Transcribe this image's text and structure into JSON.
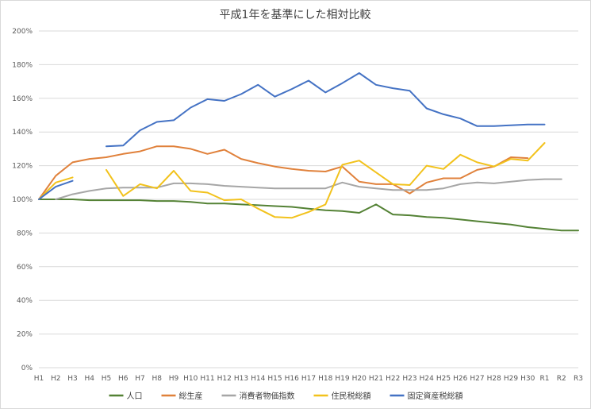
{
  "chart_data": {
    "type": "line",
    "title": "平成1年を基準にした相対比較",
    "xlabel": "",
    "ylabel": "",
    "ylim": [
      0,
      200
    ],
    "y_ticks": [
      "0%",
      "20%",
      "40%",
      "60%",
      "80%",
      "100%",
      "120%",
      "140%",
      "160%",
      "180%",
      "200%"
    ],
    "y_tick_values": [
      0,
      20,
      40,
      60,
      80,
      100,
      120,
      140,
      160,
      180,
      200
    ],
    "grid": true,
    "legend_position": "bottom",
    "categories": [
      "H1",
      "H2",
      "H3",
      "H4",
      "H5",
      "H6",
      "H7",
      "H8",
      "H9",
      "H10",
      "H11",
      "H12",
      "H13",
      "H14",
      "H15",
      "H16",
      "H17",
      "H18",
      "H19",
      "H20",
      "H21",
      "H22",
      "H23",
      "H24",
      "H25",
      "H26",
      "H27",
      "H28",
      "H29",
      "H30",
      "R1",
      "R2",
      "R3"
    ],
    "series": [
      {
        "name": "人口",
        "color": "#548235",
        "values": [
          100,
          100,
          100,
          99.5,
          99.5,
          99.5,
          99.5,
          99,
          99,
          98.5,
          97.5,
          97.5,
          97,
          96.5,
          96,
          95.5,
          94.5,
          93.5,
          93,
          92,
          97,
          91,
          90.5,
          89.5,
          89,
          88,
          87,
          86,
          85,
          83.5,
          82.5,
          81.5,
          81.5
        ]
      },
      {
        "name": "総生産",
        "color": "#e0813b",
        "values": [
          100,
          114,
          122,
          124,
          125,
          127,
          128.5,
          131.5,
          131.5,
          130,
          127,
          129.5,
          124,
          121.5,
          119.5,
          118,
          117,
          116.5,
          119.5,
          110.5,
          109,
          109,
          103.5,
          110,
          112.5,
          112.5,
          117.5,
          119.5,
          125,
          124.5,
          null,
          null,
          null
        ]
      },
      {
        "name": "消費者物価指数",
        "color": "#a6a6a6",
        "values": [
          null,
          100,
          103,
          105,
          106.5,
          107,
          107,
          107,
          109.5,
          109.5,
          109,
          108,
          107.5,
          107,
          106.5,
          106.5,
          106.5,
          106.5,
          110,
          107.5,
          106.5,
          105.5,
          105.5,
          105.5,
          106.5,
          109,
          110,
          109.5,
          110.5,
          111.5,
          112,
          112,
          null
        ]
      },
      {
        "name": "住民税総額",
        "color": "#f2c21c",
        "values": [
          100,
          110,
          113,
          null,
          117.5,
          102,
          109,
          106.5,
          117,
          105,
          104,
          99.5,
          100,
          94.5,
          89.5,
          89,
          92.5,
          97,
          120.5,
          123,
          116,
          109,
          108.5,
          120,
          118,
          126.5,
          122,
          119.5,
          124,
          123,
          133.5,
          null,
          null
        ]
      },
      {
        "name": "固定資産税総額",
        "color": "#4472c4",
        "values": [
          100,
          107.5,
          111,
          null,
          131.5,
          132,
          141,
          146,
          147,
          154.5,
          159.5,
          158.5,
          162.5,
          168,
          161,
          165.5,
          170.5,
          163.5,
          169,
          175,
          168,
          166,
          164.5,
          154,
          150.5,
          148,
          143.5,
          143.5,
          144,
          144.5,
          144.5,
          null,
          null
        ]
      }
    ]
  }
}
